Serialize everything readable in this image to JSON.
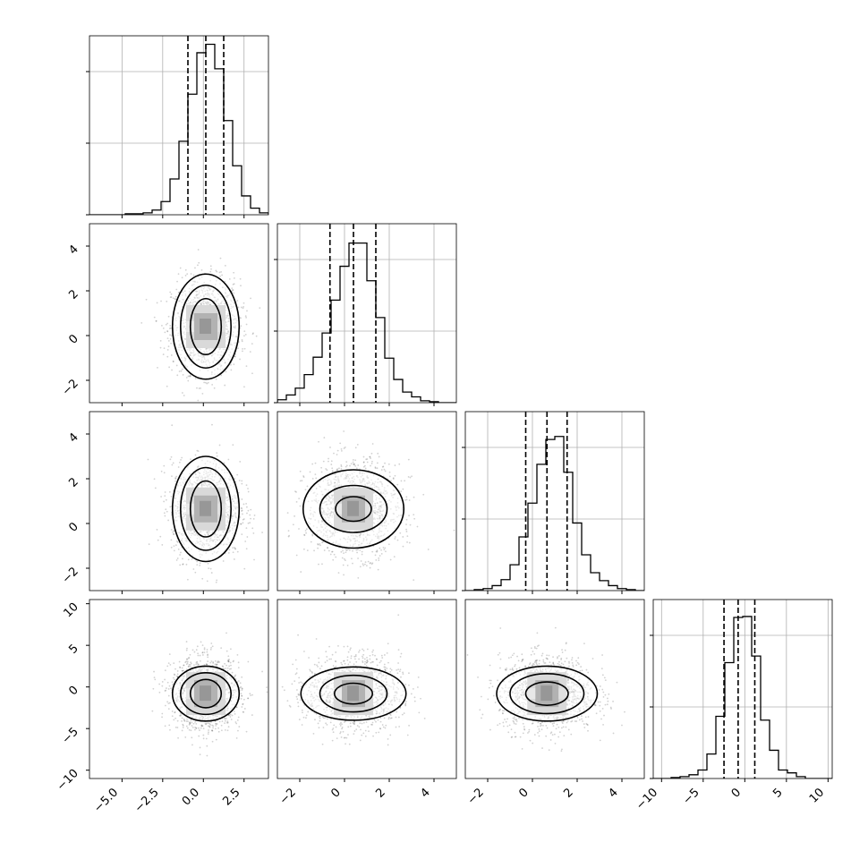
{
  "chart_data": {
    "type": "corner",
    "dimensions": 4,
    "ranges": [
      [
        -7.0,
        4.0
      ],
      [
        -3.0,
        5.0
      ],
      [
        -3.0,
        5.0
      ],
      [
        -11.0,
        10.5
      ]
    ],
    "ticks": [
      [
        -5.0,
        -2.5,
        0.0,
        2.5
      ],
      [
        -2,
        0,
        2,
        4
      ],
      [
        -2,
        0,
        2,
        4
      ],
      [
        -10,
        -5,
        0,
        5,
        10
      ]
    ],
    "tick_labels": [
      [
        "−5.0",
        "−2.5",
        "0.0",
        "2.5"
      ],
      [
        "−2",
        "0",
        "2",
        "4"
      ],
      [
        "−2",
        "0",
        "2",
        "4"
      ],
      [
        "−10",
        "−5",
        "0",
        "5",
        "10"
      ]
    ],
    "quantiles": [
      [
        -0.95,
        0.15,
        1.25
      ],
      [
        -0.65,
        0.4,
        1.4
      ],
      [
        -0.3,
        0.65,
        1.55
      ],
      [
        -2.5,
        -0.8,
        1.2
      ]
    ],
    "means": [
      0.15,
      0.4,
      0.65,
      -0.8
    ],
    "sigmas": [
      1.0,
      1.0,
      1.0,
      2.1
    ],
    "histograms": [
      {
        "bins": [
          -7.0,
          -6.45,
          -5.9,
          -5.35,
          -4.8,
          -4.25,
          -3.7,
          -3.15,
          -2.6,
          -2.05,
          -1.5,
          -0.95,
          -0.4,
          0.15,
          0.7,
          1.25,
          1.8,
          2.35,
          2.9,
          3.45,
          4.0
        ],
        "counts": [
          0,
          0,
          0,
          0,
          1,
          1,
          2,
          5,
          14,
          38,
          78,
          128,
          172,
          181,
          155,
          100,
          52,
          20,
          7,
          2
        ],
        "ymax": 190
      },
      {
        "bins": [
          -3.0,
          -2.6,
          -2.2,
          -1.8,
          -1.4,
          -1.0,
          -0.6,
          -0.2,
          0.2,
          0.6,
          1.0,
          1.4,
          1.8,
          2.2,
          2.6,
          3.0,
          3.4,
          3.8,
          4.2,
          4.6,
          5.0
        ],
        "counts": [
          3,
          8,
          15,
          29,
          47,
          72,
          106,
          141,
          165,
          165,
          126,
          88,
          46,
          24,
          11,
          6,
          2,
          1,
          0,
          0
        ],
        "ymax": 185
      },
      {
        "bins": [
          -3.0,
          -2.6,
          -2.2,
          -1.8,
          -1.4,
          -1.0,
          -0.6,
          -0.2,
          0.2,
          0.6,
          1.0,
          1.4,
          1.8,
          2.2,
          2.6,
          3.0,
          3.4,
          3.8,
          4.2,
          4.6,
          5.0
        ],
        "counts": [
          0,
          1,
          2,
          5,
          11,
          26,
          54,
          88,
          127,
          152,
          155,
          119,
          68,
          36,
          18,
          10,
          5,
          2,
          1,
          0
        ],
        "ymax": 180
      },
      {
        "bins": [
          -11.0,
          -9.925,
          -8.85,
          -7.775,
          -6.7,
          -5.625,
          -4.55,
          -3.475,
          -2.4,
          -1.325,
          -0.25,
          0.825,
          1.9,
          2.975,
          4.05,
          5.125,
          6.2,
          7.275,
          8.35,
          9.425,
          10.5
        ],
        "counts": [
          0,
          0,
          1,
          2,
          4,
          9,
          26,
          66,
          123,
          171,
          172,
          130,
          62,
          30,
          9,
          6,
          2,
          0,
          0,
          0
        ],
        "ymax": 190
      }
    ],
    "contours": {
      "1-0": [
        [
          0.95,
          1.25
        ],
        [
          1.55,
          1.85
        ],
        [
          2.05,
          2.35
        ]
      ],
      "2-0": [
        [
          0.95,
          1.25
        ],
        [
          1.55,
          1.85
        ],
        [
          2.05,
          2.35
        ]
      ],
      "3-0": [
        [
          0.95,
          1.7
        ],
        [
          1.55,
          2.5
        ],
        [
          2.05,
          3.3
        ]
      ],
      "2-1": [
        [
          0.8,
          0.55
        ],
        [
          1.5,
          1.05
        ],
        [
          2.25,
          1.75
        ]
      ],
      "3-1": [
        [
          0.85,
          1.25
        ],
        [
          1.5,
          2.2
        ],
        [
          2.35,
          3.2
        ]
      ],
      "3-2": [
        [
          0.95,
          1.4
        ],
        [
          1.65,
          2.4
        ],
        [
          2.25,
          3.3
        ]
      ]
    }
  }
}
